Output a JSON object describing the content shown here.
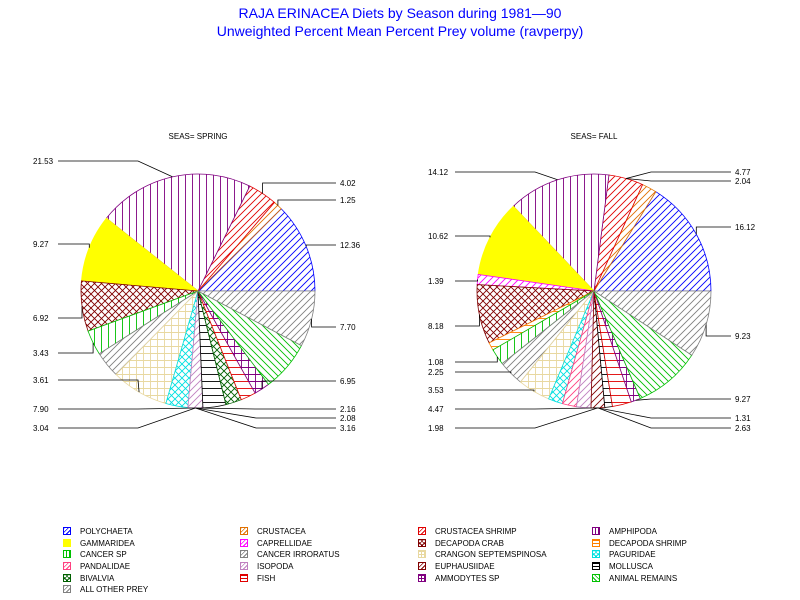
{
  "header": {
    "title": "RAJA ERINACEA Diets by Season during 1981—90",
    "subtitle": "Unweighted Percent Mean Percent Prey  volume (ravperpy)"
  },
  "legend": [
    {
      "label": "POLYCHAETA",
      "color": "#0000ff",
      "pattern": "diag-up"
    },
    {
      "label": "CRUSTACEA",
      "color": "#e07000",
      "pattern": "diag-up"
    },
    {
      "label": "CRUSTACEA SHRIMP",
      "color": "#e00000",
      "pattern": "diag-up"
    },
    {
      "label": "AMPHIPODA",
      "color": "#800080",
      "pattern": "vertical"
    },
    {
      "label": "GAMMARIDEA",
      "color": "#ffff00",
      "pattern": "solid"
    },
    {
      "label": "CAPRELLIDAE",
      "color": "#ff00ff",
      "pattern": "diag-up"
    },
    {
      "label": "DECAPODA CRAB",
      "color": "#800000",
      "pattern": "crosshatch"
    },
    {
      "label": "DECAPODA SHRIMP",
      "color": "#ff8000",
      "pattern": "horizontal"
    },
    {
      "label": "CANCER SP",
      "color": "#00c000",
      "pattern": "vertical"
    },
    {
      "label": "CANCER IRRORATUS",
      "color": "#808080",
      "pattern": "diag-up"
    },
    {
      "label": "CRANGON SEPTEMSPINOSA",
      "color": "#e8d8a0",
      "pattern": "grid"
    },
    {
      "label": "PAGURIDAE",
      "color": "#00e0e0",
      "pattern": "crosshatch"
    },
    {
      "label": "PANDALIDAE",
      "color": "#ff4080",
      "pattern": "diag-up"
    },
    {
      "label": "ISOPODA",
      "color": "#c080c0",
      "pattern": "diag-up"
    },
    {
      "label": "EUPHAUSIIDAE",
      "color": "#800000",
      "pattern": "diag-up"
    },
    {
      "label": "MOLLUSCA",
      "color": "#000000",
      "pattern": "horizontal"
    },
    {
      "label": "BIVALVIA",
      "color": "#006000",
      "pattern": "crosshatch"
    },
    {
      "label": "FISH",
      "color": "#e00000",
      "pattern": "horizontal"
    },
    {
      "label": "AMMODYTES SP",
      "color": "#800080",
      "pattern": "grid"
    },
    {
      "label": "ANIMAL REMAINS",
      "color": "#00c000",
      "pattern": "diag-down"
    },
    {
      "label": "ALL OTHER PREY",
      "color": "#808080",
      "pattern": "diag-up"
    }
  ],
  "chart_data": [
    {
      "type": "pie",
      "title": "SEAS= SPRING",
      "slices": [
        {
          "category": "POLYCHAETA",
          "value": 12.36
        },
        {
          "category": "CRUSTACEA",
          "value": 1.25
        },
        {
          "category": "CRUSTACEA SHRIMP",
          "value": 4.02
        },
        {
          "category": "AMPHIPODA",
          "value": 21.53
        },
        {
          "category": "GAMMARIDEA",
          "value": 9.27
        },
        {
          "category": "DECAPODA CRAB",
          "value": 6.92
        },
        {
          "category": "CANCER SP",
          "value": 3.43
        },
        {
          "category": "CANCER IRRORATUS",
          "value": 3.61
        },
        {
          "category": "CRANGON SEPTEMSPINOSA",
          "value": 7.9
        },
        {
          "category": "PAGURIDAE",
          "value": 3.04
        },
        {
          "category": "ISOPODA",
          "value": 2.04
        },
        {
          "category": "MOLLUSCA",
          "value": 3.16
        },
        {
          "category": "BIVALVIA",
          "value": 2.18
        },
        {
          "category": "FISH",
          "value": 2.08
        },
        {
          "category": "AMMODYTES SP",
          "value": 2.16
        },
        {
          "category": "ANIMAL REMAINS",
          "value": 6.95
        },
        {
          "category": "ALL OTHER PREY",
          "value": 7.7
        }
      ],
      "label_rows": [
        {
          "side": "left",
          "text": "21.53"
        },
        {
          "side": "left",
          "text": "9.27"
        },
        {
          "side": "left",
          "text": "6.92"
        },
        {
          "side": "left",
          "text": "3.43"
        },
        {
          "side": "left",
          "text": "3.61"
        },
        {
          "side": "left",
          "text": "7.90"
        },
        {
          "side": "left",
          "text": "3.04"
        },
        {
          "side": "right",
          "text": "4.02"
        },
        {
          "side": "right",
          "text": "1.25"
        },
        {
          "side": "right",
          "text": "12.36"
        },
        {
          "side": "right",
          "text": "7.70"
        },
        {
          "side": "right",
          "text": "6.95"
        },
        {
          "side": "right",
          "text": "2.16"
        },
        {
          "side": "right",
          "text": "2.08"
        },
        {
          "side": "right",
          "text": "3.16"
        }
      ]
    },
    {
      "type": "pie",
      "title": "SEAS= FALL",
      "slices": [
        {
          "category": "POLYCHAETA",
          "value": 16.12
        },
        {
          "category": "CRUSTACEA",
          "value": 2.04
        },
        {
          "category": "CRUSTACEA SHRIMP",
          "value": 4.77
        },
        {
          "category": "AMPHIPODA",
          "value": 14.12
        },
        {
          "category": "GAMMARIDEA",
          "value": 10.62
        },
        {
          "category": "CAPRELLIDAE",
          "value": 1.39
        },
        {
          "category": "DECAPODA CRAB",
          "value": 8.18
        },
        {
          "category": "DECAPODA SHRIMP",
          "value": 1.08
        },
        {
          "category": "CANCER SP",
          "value": 2.25
        },
        {
          "category": "CANCER IRRORATUS",
          "value": 3.53
        },
        {
          "category": "CRANGON SEPTEMSPINOSA",
          "value": 4.47
        },
        {
          "category": "PAGURIDAE",
          "value": 1.98
        },
        {
          "category": "PANDALIDAE",
          "value": 1.96
        },
        {
          "category": "ISOPODA",
          "value": 1.98
        },
        {
          "category": "EUPHAUSIIDAE",
          "value": 1.88
        },
        {
          "category": "MOLLUSCA",
          "value": 1.05
        },
        {
          "category": "FISH",
          "value": 2.63
        },
        {
          "category": "AMMODYTES SP",
          "value": 1.31
        },
        {
          "category": "ANIMAL REMAINS",
          "value": 9.27
        },
        {
          "category": "ALL OTHER PREY",
          "value": 9.23
        }
      ],
      "label_rows": [
        {
          "side": "left",
          "text": "14.12"
        },
        {
          "side": "left",
          "text": "10.62"
        },
        {
          "side": "left",
          "text": "1.39"
        },
        {
          "side": "left",
          "text": "8.18"
        },
        {
          "side": "left",
          "text": "1.08"
        },
        {
          "side": "left",
          "text": "2.25"
        },
        {
          "side": "left",
          "text": "3.53"
        },
        {
          "side": "left",
          "text": "4.47"
        },
        {
          "side": "left",
          "text": "1.98"
        },
        {
          "side": "right",
          "text": "4.77"
        },
        {
          "side": "right",
          "text": "2.04"
        },
        {
          "side": "right",
          "text": "16.12"
        },
        {
          "side": "right",
          "text": "9.23"
        },
        {
          "side": "right",
          "text": "9.27"
        },
        {
          "side": "right",
          "text": "1.31"
        },
        {
          "side": "right",
          "text": "2.63"
        }
      ]
    }
  ]
}
